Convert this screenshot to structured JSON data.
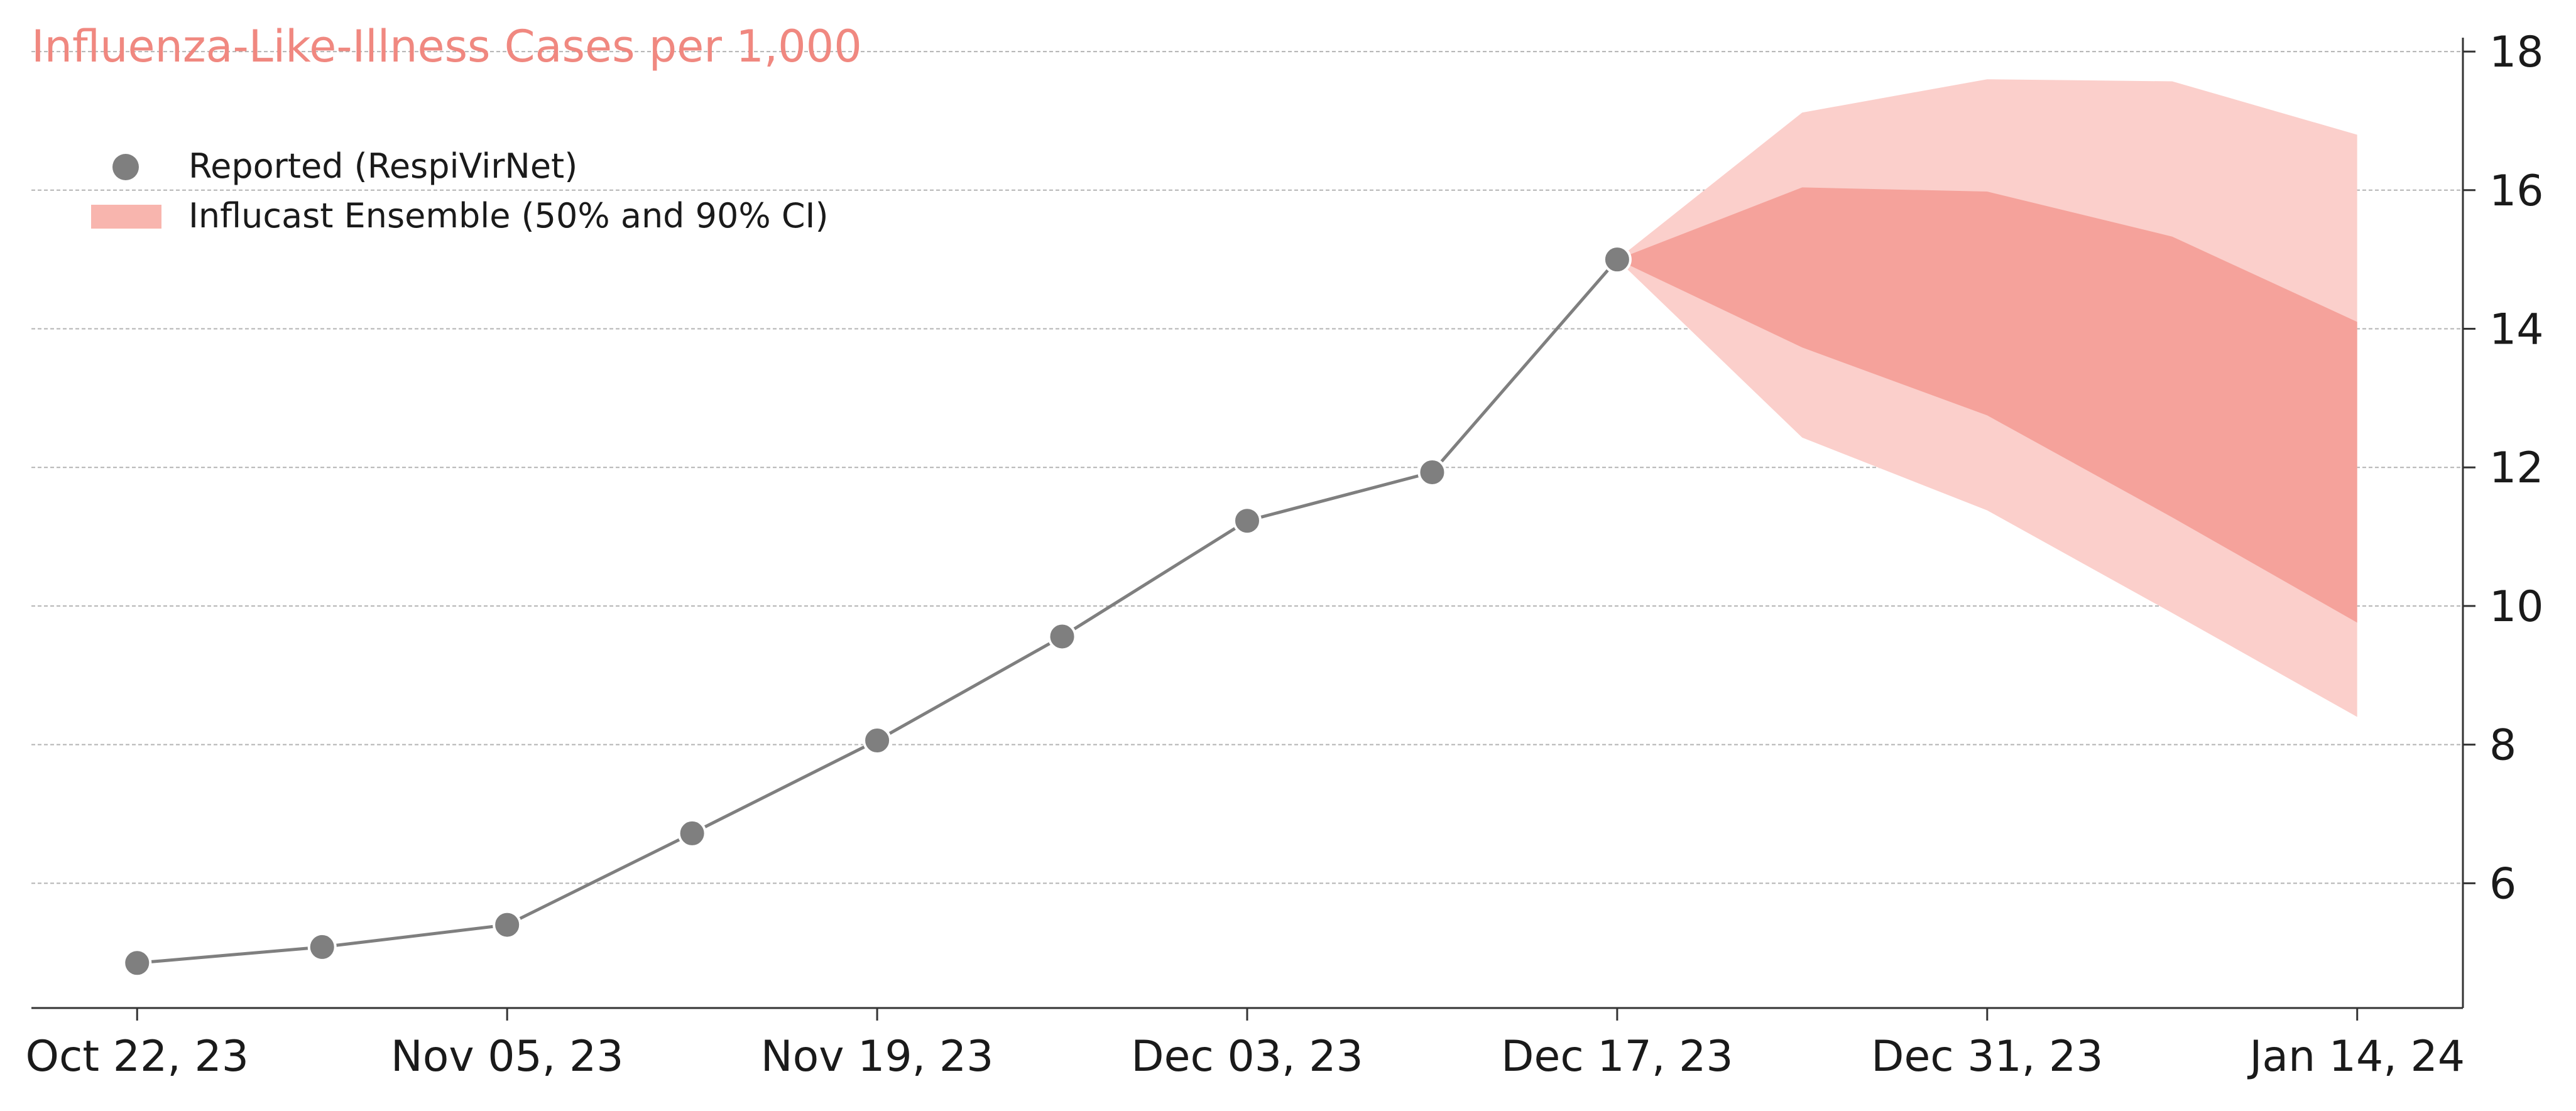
{
  "chart_data": {
    "type": "line",
    "title": "Influenza-Like-Illness Cases per 1,000",
    "xlabel": "",
    "ylabel": "",
    "x_tick_labels": [
      "Oct 22, 23",
      "Nov 05, 23",
      "Nov 19, 23",
      "Dec 03, 23",
      "Dec 17, 23",
      "Dec 31, 23",
      "Jan 14, 24"
    ],
    "x_tick_dates": [
      "2023-10-22",
      "2023-11-05",
      "2023-11-19",
      "2023-12-03",
      "2023-12-17",
      "2023-12-31",
      "2024-01-14"
    ],
    "y_ticks": [
      6,
      8,
      10,
      12,
      14,
      16,
      18
    ],
    "ylim": [
      4.2,
      18.2
    ],
    "xlim": [
      "2023-10-18",
      "2024-01-18"
    ],
    "y_axis_position": "right",
    "grid": "horizontal, dashed",
    "legend_position": "top-left",
    "series": [
      {
        "name": "Reported (RespiVirNet)",
        "type": "line-markers",
        "color": "#7f7f7f",
        "points": [
          {
            "x": "2023-10-22",
            "y": 4.85
          },
          {
            "x": "2023-10-29",
            "y": 5.08
          },
          {
            "x": "2023-11-05",
            "y": 5.4
          },
          {
            "x": "2023-11-12",
            "y": 6.72
          },
          {
            "x": "2023-11-19",
            "y": 8.06
          },
          {
            "x": "2023-11-26",
            "y": 9.56
          },
          {
            "x": "2023-12-03",
            "y": 11.23
          },
          {
            "x": "2023-12-10",
            "y": 11.93
          },
          {
            "x": "2023-12-17",
            "y": 15.0
          }
        ]
      },
      {
        "name": "Influcast Ensemble (50% and 90% CI)",
        "type": "band",
        "color": "#f4a097",
        "color_90": "#fbcfcb",
        "color_50": "#f5a29b",
        "points": [
          {
            "x": "2023-12-17",
            "lo90": 15.0,
            "lo50": 15.0,
            "hi50": 15.0,
            "hi90": 15.0
          },
          {
            "x": "2023-12-24",
            "lo90": 12.43,
            "lo50": 13.73,
            "hi50": 16.04,
            "hi90": 17.12
          },
          {
            "x": "2023-12-31",
            "lo90": 11.38,
            "lo50": 12.75,
            "hi50": 15.98,
            "hi90": 17.6
          },
          {
            "x": "2024-01-07",
            "lo90": 9.9,
            "lo50": 11.28,
            "hi50": 15.33,
            "hi90": 17.57
          },
          {
            "x": "2024-01-14",
            "lo90": 8.4,
            "lo50": 9.76,
            "hi50": 14.1,
            "hi90": 16.8
          }
        ]
      }
    ]
  },
  "colors": {
    "title": "#f08880",
    "reported": "#7f7f7f",
    "band_90": "#fbcfcb",
    "band_50": "#f5a29b",
    "legend_patch": "#f8b5ae"
  }
}
